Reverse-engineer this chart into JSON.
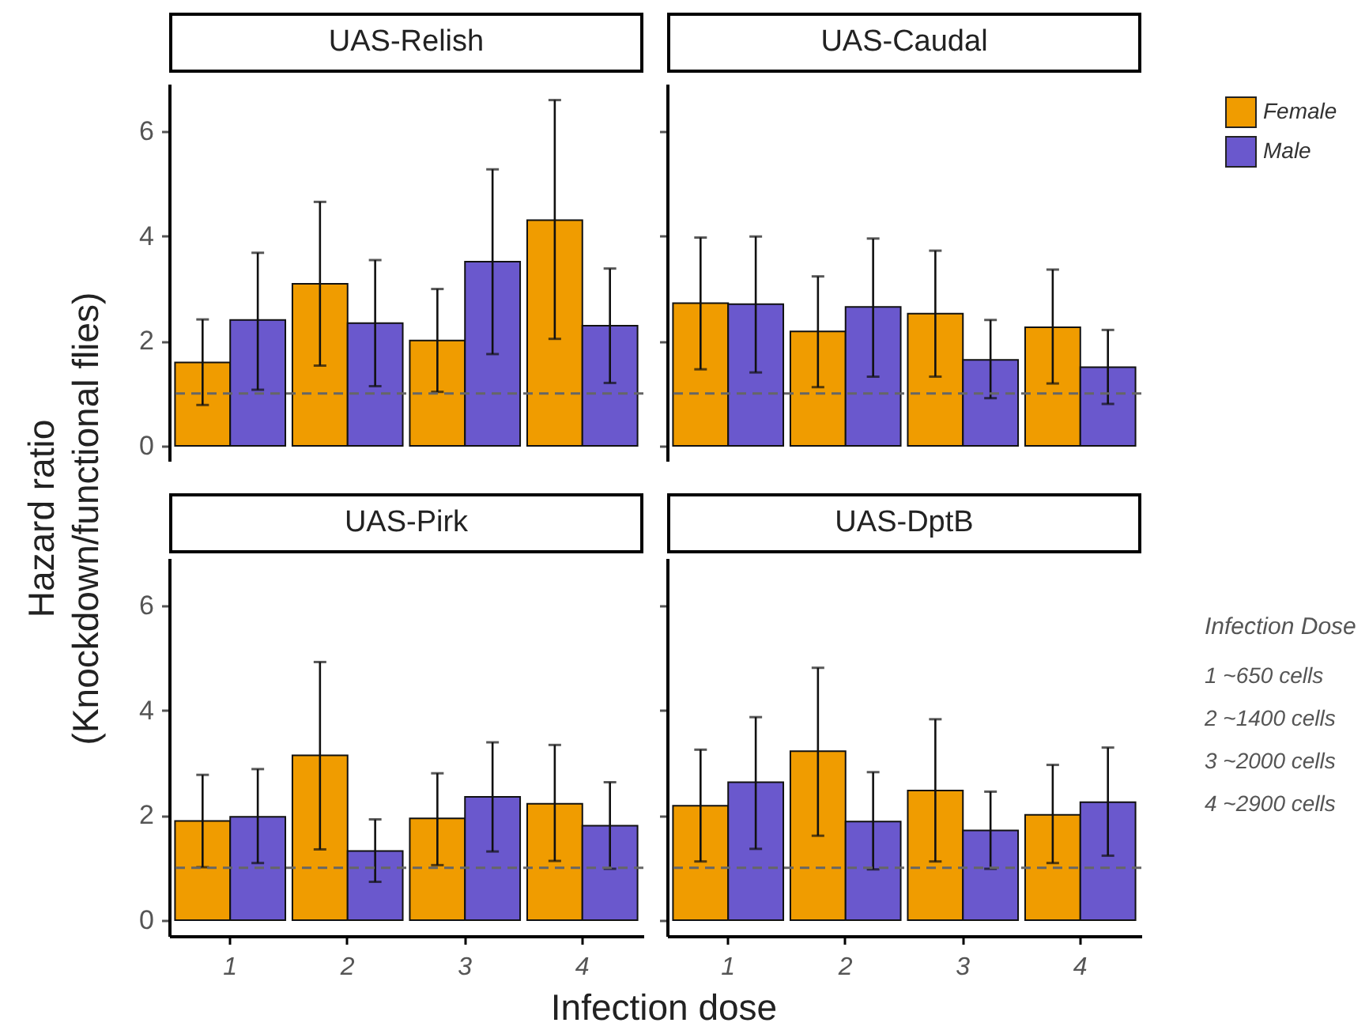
{
  "chart_data": [
    {
      "type": "bar",
      "title": "UAS-Relish",
      "ylabel": "Hazard ratio\n(Knockdown/functional flies)",
      "categories": [
        "1",
        "2",
        "3",
        "4"
      ],
      "ylim": [
        -0.3,
        6.9
      ],
      "yticks": [
        0,
        2,
        4,
        6
      ],
      "tick_labels": "y",
      "legend": false,
      "series": [
        {
          "color": "#f09c00",
          "values": [
            1.59,
            3.09,
            2.01,
            4.3
          ],
          "errors": [
            [
              0.78,
              2.41
            ],
            [
              1.53,
              4.65
            ],
            [
              1.03,
              2.99
            ],
            [
              2.04,
              6.59
            ]
          ]
        },
        {
          "color": "#6a58cd",
          "values": [
            2.4,
            2.34,
            3.51,
            2.29
          ],
          "errors": [
            [
              1.07,
              3.68
            ],
            [
              1.14,
              3.54
            ],
            [
              1.75,
              5.27
            ],
            [
              1.2,
              3.38
            ]
          ]
        }
      ],
      "ref_lines": [
        {
          "axis": "y",
          "value": 1,
          "color": "#666666",
          "line_style": "dashed"
        }
      ]
    },
    {
      "type": "bar",
      "title": "UAS-Caudal",
      "categories": [
        "1",
        "2",
        "3",
        "4"
      ],
      "ylim": [
        -0.3,
        6.9
      ],
      "yticks": [
        0,
        2,
        4,
        6
      ],
      "tick_labels": false,
      "legend": "right",
      "series": [
        {
          "name": "Female",
          "color": "#f09c00",
          "values": [
            2.72,
            2.18,
            2.52,
            2.26
          ],
          "errors": [
            [
              1.46,
              3.97
            ],
            [
              1.12,
              3.23
            ],
            [
              1.32,
              3.72
            ],
            [
              1.19,
              3.36
            ]
          ]
        },
        {
          "name": "Male",
          "color": "#6a58cd",
          "values": [
            2.7,
            2.65,
            1.64,
            1.5
          ],
          "errors": [
            [
              1.4,
              3.99
            ],
            [
              1.32,
              3.95
            ],
            [
              0.91,
              2.4
            ],
            [
              0.8,
              2.21
            ]
          ]
        }
      ],
      "ref_lines": [
        {
          "axis": "y",
          "value": 1,
          "color": "#666666",
          "line_style": "dashed"
        }
      ]
    },
    {
      "type": "bar",
      "title": "UAS-Pirk",
      "xlabel": "Infection dose",
      "categories": [
        "1",
        "2",
        "3",
        "4"
      ],
      "ylim": [
        -0.3,
        6.9
      ],
      "yticks": [
        0,
        2,
        4,
        6
      ],
      "legend": false,
      "series": [
        {
          "color": "#f09c00",
          "values": [
            1.89,
            3.14,
            1.94,
            2.22
          ],
          "errors": [
            [
              1.01,
              2.77
            ],
            [
              1.35,
              4.92
            ],
            [
              1.05,
              2.8
            ],
            [
              1.13,
              3.34
            ]
          ]
        },
        {
          "color": "#6a58cd",
          "values": [
            1.97,
            1.32,
            2.35,
            1.8
          ],
          "errors": [
            [
              1.09,
              2.88
            ],
            [
              0.73,
              1.92
            ],
            [
              1.31,
              3.39
            ],
            [
              0.98,
              2.63
            ]
          ]
        }
      ],
      "ref_lines": [
        {
          "axis": "y",
          "value": 1,
          "color": "#666666",
          "line_style": "dashed"
        }
      ]
    },
    {
      "type": "bar",
      "title": "UAS-DptB",
      "categories": [
        "1",
        "2",
        "3",
        "4"
      ],
      "ylim": [
        -0.3,
        6.9
      ],
      "yticks": [
        0,
        2,
        4,
        6
      ],
      "tick_labels": "x",
      "legend": false,
      "series": [
        {
          "color": "#f09c00",
          "values": [
            2.18,
            3.22,
            2.47,
            2.01
          ],
          "errors": [
            [
              1.12,
              3.25
            ],
            [
              1.61,
              4.81
            ],
            [
              1.12,
              3.83
            ],
            [
              1.09,
              2.96
            ]
          ]
        },
        {
          "color": "#6a58cd",
          "values": [
            2.63,
            1.88,
            1.71,
            2.25
          ],
          "errors": [
            [
              1.36,
              3.87
            ],
            [
              0.97,
              2.82
            ],
            [
              0.98,
              2.45
            ],
            [
              1.23,
              3.29
            ]
          ]
        }
      ],
      "ref_lines": [
        {
          "axis": "y",
          "value": 1,
          "color": "#666666",
          "line_style": "dashed"
        }
      ],
      "annotations": [
        "Infection Dose",
        "1 ~650 cells",
        "2 ~1400 cells",
        "3 ~2000 cells",
        "4 ~2900 cells"
      ]
    }
  ]
}
